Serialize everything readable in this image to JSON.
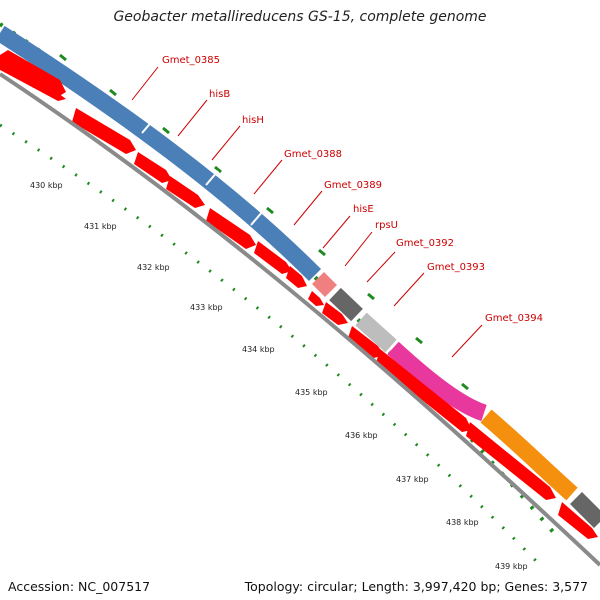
{
  "title": "Geobacter metallireducens GS-15, complete genome",
  "footer": {
    "accession": "Accession: NC_007517",
    "summary": "Topology: circular; Length: 3,997,420 bp; Genes: 3,577"
  },
  "colors": {
    "gene_label": "#cc0000",
    "backbone": "#8a8a8a",
    "cds_arrow": "#ff0000",
    "tick": "#2a8a2a",
    "leader": "#cc0000"
  },
  "gene_labels": [
    "Gmet_0385",
    "hisB",
    "hisH",
    "Gmet_0388",
    "Gmet_0389",
    "hisE",
    "rpsU",
    "Gmet_0392",
    "Gmet_0393",
    "Gmet_0394"
  ],
  "kbp_labels": [
    "430 kbp",
    "431 kbp",
    "432 kbp",
    "433 kbp",
    "434 kbp",
    "435 kbp",
    "436 kbp",
    "437 kbp",
    "438 kbp",
    "439 kbp"
  ],
  "cog_segments": [
    {
      "name": "cog-blue",
      "color": "#4a7fb8"
    },
    {
      "name": "cog-pink",
      "color": "#f08080"
    },
    {
      "name": "cog-darkgray",
      "color": "#666666"
    },
    {
      "name": "cog-lightgray",
      "color": "#bdbdbd"
    },
    {
      "name": "cog-magenta",
      "color": "#e8389e"
    },
    {
      "name": "cog-orange",
      "color": "#f5900f"
    },
    {
      "name": "cog-darkgray-2",
      "color": "#666666"
    }
  ]
}
